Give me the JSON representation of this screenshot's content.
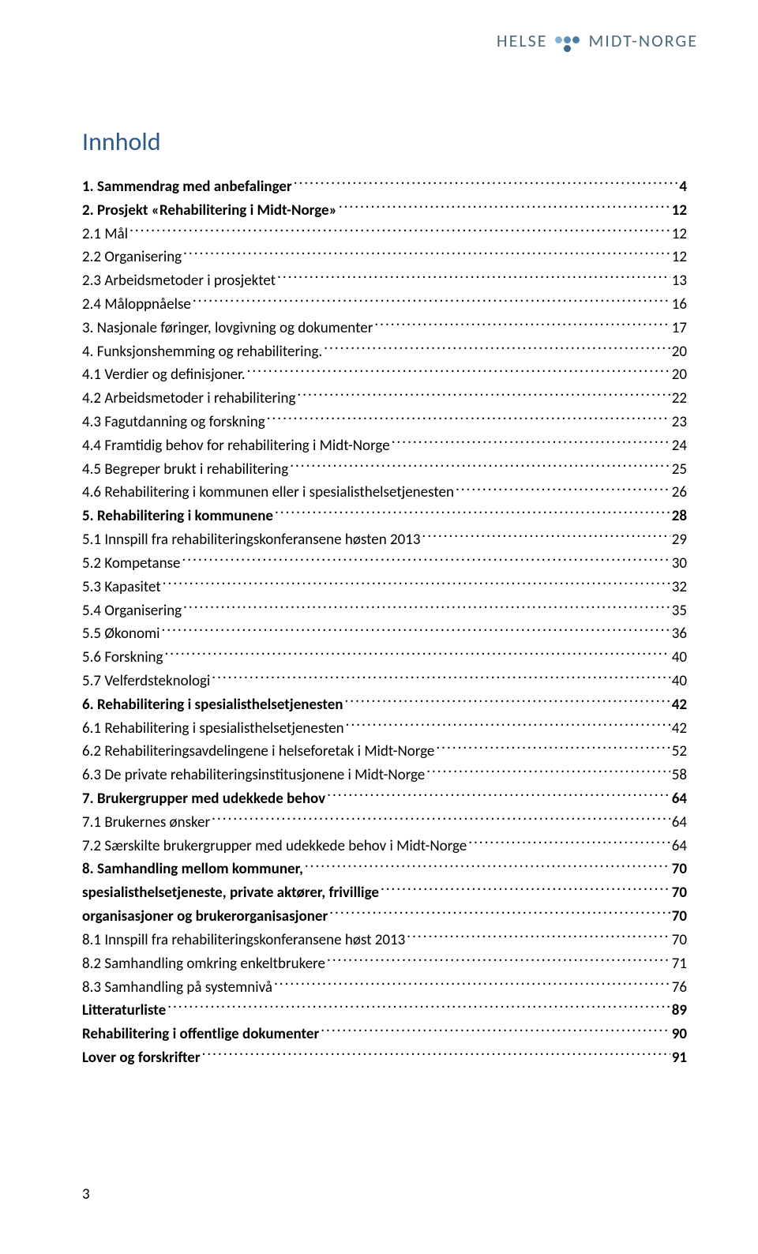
{
  "logo": {
    "text_left": "HELSE",
    "text_right": "MIDT-NORGE",
    "dot_colors": [
      "#7fb3d5",
      "#5b8fb9",
      "#4a7ba6",
      "#3a6a93"
    ]
  },
  "title": "Innhold",
  "page_number": "3",
  "toc": [
    {
      "label": "1. Sammendrag med anbefalinger",
      "page": "4",
      "bold": true
    },
    {
      "label": "2. Prosjekt «Rehabilitering i Midt-Norge»",
      "page": "12",
      "bold": true
    },
    {
      "label": "2.1 Mål",
      "page": "12",
      "bold": false
    },
    {
      "label": "2.2 Organisering",
      "page": "12",
      "bold": false
    },
    {
      "label": "2.3 Arbeidsmetoder i prosjektet",
      "page": "13",
      "bold": false
    },
    {
      "label": "2.4 Måloppnåelse",
      "page": "16",
      "bold": false
    },
    {
      "label": "3. Nasjonale føringer, lovgivning og dokumenter",
      "page": "17",
      "bold": false
    },
    {
      "label": "4. Funksjonshemming og rehabilitering.",
      "page": "20",
      "bold": false
    },
    {
      "label": "4.1 Verdier og definisjoner.",
      "page": "20",
      "bold": false
    },
    {
      "label": "4.2 Arbeidsmetoder i rehabilitering",
      "page": "22",
      "bold": false
    },
    {
      "label": "4.3 Fagutdanning og forskning",
      "page": "23",
      "bold": false
    },
    {
      "label": "4.4 Framtidig behov for rehabilitering i Midt-Norge",
      "page": "24",
      "bold": false
    },
    {
      "label": "4.5 Begreper brukt i rehabilitering",
      "page": "25",
      "bold": false
    },
    {
      "label": "4.6 Rehabilitering i kommunen eller i spesialisthelsetjenesten",
      "page": "26",
      "bold": false
    },
    {
      "label": "5. Rehabilitering i kommunene",
      "page": "28",
      "bold": true
    },
    {
      "label": "5.1 Innspill fra rehabiliteringskonferansene høsten 2013",
      "page": "29",
      "bold": false
    },
    {
      "label": "5.2 Kompetanse",
      "page": "30",
      "bold": false
    },
    {
      "label": "5.3 Kapasitet",
      "page": "32",
      "bold": false
    },
    {
      "label": "5.4 Organisering",
      "page": "35",
      "bold": false
    },
    {
      "label": "5.5 Økonomi",
      "page": "36",
      "bold": false
    },
    {
      "label": "5.6 Forskning",
      "page": "40",
      "bold": false
    },
    {
      "label": "5.7 Velferdsteknologi",
      "page": "40",
      "bold": false
    },
    {
      "label": "6. Rehabilitering i spesialisthelsetjenesten",
      "page": "42",
      "bold": true
    },
    {
      "label": "6.1 Rehabilitering i spesialisthelsetjenesten",
      "page": "42",
      "bold": false
    },
    {
      "label": "6.2 Rehabiliteringsavdelingene i helseforetak i Midt-Norge",
      "page": "52",
      "bold": false
    },
    {
      "label": "6.3 De private rehabiliteringsinstitusjonene i Midt-Norge",
      "page": "58",
      "bold": false
    },
    {
      "label": "7. Brukergrupper med udekkede behov",
      "page": "64",
      "bold": true
    },
    {
      "label": "7.1 Brukernes ønsker",
      "page": "64",
      "bold": false
    },
    {
      "label": "7.2 Særskilte brukergrupper med udekkede behov i Midt-Norge",
      "page": "64",
      "bold": false
    },
    {
      "label": "8. Samhandling mellom kommuner,",
      "page": "70",
      "bold": true
    },
    {
      "label": "spesialisthelsetjeneste, private aktører, frivillige",
      "page": "70",
      "bold": true
    },
    {
      "label": "organisasjoner og brukerorganisasjoner",
      "page": "70",
      "bold": true
    },
    {
      "label": "8.1 Innspill fra rehabiliteringskonferansene høst 2013",
      "page": "70",
      "bold": false
    },
    {
      "label": "8.2 Samhandling omkring enkeltbrukere",
      "page": "71",
      "bold": false
    },
    {
      "label": "8.3 Samhandling på systemnivå",
      "page": "76",
      "bold": false
    },
    {
      "label": "Litteraturliste",
      "page": "89",
      "bold": true
    },
    {
      "label": "Rehabilitering i offentlige dokumenter",
      "page": "90",
      "bold": true
    },
    {
      "label": "Lover og forskrifter",
      "page": "91",
      "bold": true
    }
  ]
}
